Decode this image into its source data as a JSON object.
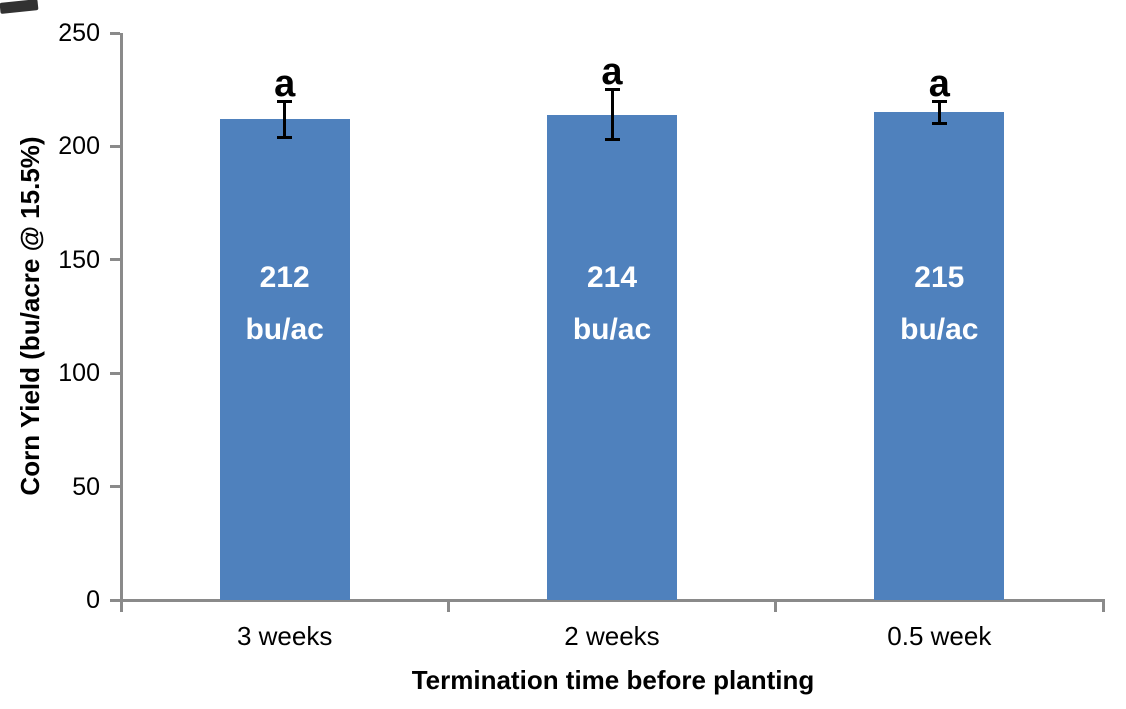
{
  "chart_data": {
    "type": "bar",
    "title": "",
    "xlabel": "Termination time before planting",
    "ylabel": "Corn Yield (bu/acre @ 15.5%)",
    "categories": [
      "3 weeks",
      "2 weeks",
      "0.5 week"
    ],
    "values": [
      212,
      214,
      215
    ],
    "bar_labels": [
      [
        "212",
        "bu/ac"
      ],
      [
        "214",
        "bu/ac"
      ],
      [
        "215",
        "bu/ac"
      ]
    ],
    "error_bars": [
      8,
      11,
      5
    ],
    "significance_letters": [
      "a",
      "a",
      "a"
    ],
    "ylim": [
      0,
      250
    ],
    "yticks": [
      0,
      50,
      100,
      150,
      200,
      250
    ],
    "grid": false,
    "legend": "none",
    "colors": {
      "bar": "#4f81bd",
      "axis": "#8a8a8a",
      "error_bar": "#000000",
      "bar_label_text": "#ffffff",
      "tick_label_text": "#000000"
    }
  }
}
